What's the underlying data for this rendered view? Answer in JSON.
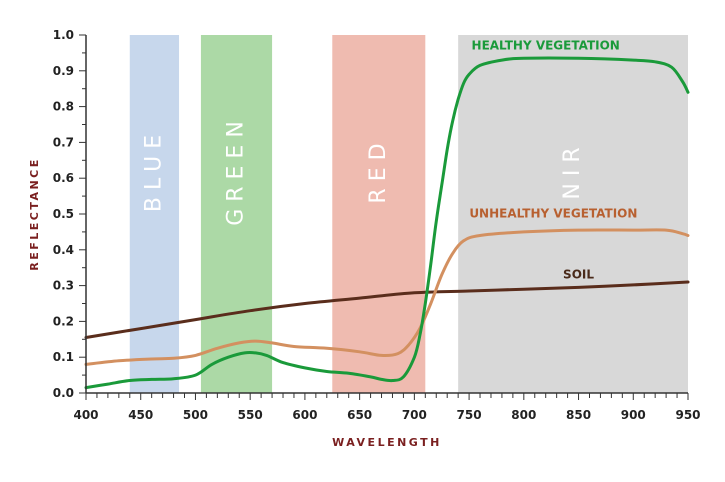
{
  "chart_data": {
    "type": "line",
    "xlabel": "WAVELENGTH",
    "ylabel": "REFLECTANCE",
    "xlim": [
      400,
      950
    ],
    "ylim": [
      0,
      1.0
    ],
    "x_ticks": [
      400,
      450,
      500,
      550,
      600,
      650,
      700,
      750,
      800,
      850,
      900,
      950
    ],
    "y_ticks": [
      "0.0",
      "0.1",
      "0.2",
      "0.3",
      "0.4",
      "0.5",
      "0.6",
      "0.7",
      "0.8",
      "0.9",
      "1.0"
    ],
    "grid": false,
    "bands": [
      {
        "label": "BLUE",
        "range": [
          440,
          485
        ],
        "color": "#c7d7ec"
      },
      {
        "label": "GREEN",
        "range": [
          505,
          570
        ],
        "color": "#acd9a6"
      },
      {
        "label": "RED",
        "range": [
          625,
          710
        ],
        "color": "#efbbb0"
      },
      {
        "label": "NIR",
        "range": [
          740,
          950
        ],
        "color": "#d8d8d8"
      }
    ],
    "series": [
      {
        "name": "HEALTHY VEGETATION",
        "color": "#1a9a3a",
        "label_color": "#1a9a3a",
        "label_at": [
          820,
          0.96
        ],
        "x": [
          400,
          420,
          440,
          460,
          480,
          500,
          515,
          530,
          545,
          555,
          565,
          580,
          600,
          620,
          640,
          660,
          670,
          680,
          690,
          700,
          705,
          710,
          715,
          720,
          725,
          730,
          735,
          740,
          745,
          750,
          760,
          780,
          800,
          850,
          900,
          920,
          935,
          945,
          950
        ],
        "y": [
          0.015,
          0.025,
          0.035,
          0.038,
          0.04,
          0.05,
          0.08,
          0.1,
          0.112,
          0.112,
          0.105,
          0.085,
          0.07,
          0.06,
          0.055,
          0.045,
          0.038,
          0.035,
          0.045,
          0.1,
          0.16,
          0.25,
          0.36,
          0.48,
          0.58,
          0.68,
          0.76,
          0.82,
          0.865,
          0.89,
          0.915,
          0.93,
          0.935,
          0.935,
          0.93,
          0.925,
          0.91,
          0.87,
          0.84
        ]
      },
      {
        "name": "UNHEALTHY VEGETATION",
        "color": "#d39060",
        "label_color": "#b86030",
        "label_at": [
          827,
          0.49
        ],
        "x": [
          400,
          430,
          460,
          480,
          500,
          520,
          540,
          555,
          570,
          590,
          620,
          650,
          670,
          685,
          695,
          705,
          715,
          725,
          735,
          745,
          760,
          800,
          850,
          900,
          930,
          945,
          950
        ],
        "y": [
          0.08,
          0.09,
          0.095,
          0.097,
          0.105,
          0.125,
          0.14,
          0.145,
          0.14,
          0.13,
          0.125,
          0.115,
          0.105,
          0.11,
          0.135,
          0.18,
          0.25,
          0.33,
          0.39,
          0.425,
          0.44,
          0.45,
          0.455,
          0.455,
          0.455,
          0.445,
          0.44
        ]
      },
      {
        "name": "SOIL",
        "color": "#5a2d1c",
        "label_color": "#4a2a1a",
        "label_at": [
          850,
          0.32
        ],
        "x": [
          400,
          450,
          500,
          550,
          600,
          650,
          700,
          750,
          800,
          850,
          900,
          950
        ],
        "y": [
          0.155,
          0.18,
          0.205,
          0.23,
          0.25,
          0.265,
          0.28,
          0.285,
          0.29,
          0.295,
          0.302,
          0.31
        ]
      }
    ]
  }
}
